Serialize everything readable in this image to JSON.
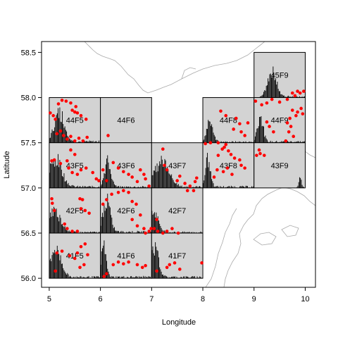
{
  "chart_data": {
    "type": "scatter",
    "title": "",
    "xlabel": "Longitude",
    "ylabel": "Latitude",
    "xlim": [
      4.85,
      10.2
    ],
    "ylim": [
      55.9,
      58.62
    ],
    "x_ticks": [
      5,
      6,
      7,
      8,
      9,
      10
    ],
    "y_ticks": [
      56.0,
      56.5,
      57.0,
      57.5,
      58.0,
      58.5
    ],
    "x_tick_labels": [
      "5",
      "6",
      "7",
      "8",
      "9",
      "10"
    ],
    "y_tick_labels": [
      "56.0",
      "56.5",
      "57.0",
      "57.5",
      "58.0",
      "58.5"
    ],
    "grid": false,
    "colors": {
      "cell_fill": "#d3d3d3",
      "points": "#ff0000",
      "histogram": "#000000",
      "coast": "#a9a9a9"
    },
    "cells": [
      {
        "label": "45F9",
        "x0": 9,
        "x1": 10,
        "y0": 58.0,
        "y1": 58.5,
        "peak": 0.35,
        "spread": 0.35,
        "hmax": 0.36
      },
      {
        "label": "44F5",
        "x0": 5,
        "x1": 6,
        "y0": 57.5,
        "y1": 58.0,
        "peak": 0.2,
        "spread": 0.4,
        "hmax": 0.42
      },
      {
        "label": "44F6",
        "x0": 6,
        "x1": 7,
        "y0": 57.5,
        "y1": 58.0,
        "peak": null,
        "spread": 0.2,
        "hmax": 0
      },
      {
        "label": "44F8",
        "x0": 8,
        "x1": 9,
        "y0": 57.5,
        "y1": 58.0,
        "peak": 0.14,
        "spread": 0.25,
        "hmax": 0.3
      },
      {
        "label": "44F9",
        "x0": 9,
        "x1": 10,
        "y0": 57.5,
        "y1": 58.0,
        "peak": 0.12,
        "spread": 0.22,
        "hmax": 0.38
      },
      {
        "label": "43F5",
        "x0": 5,
        "x1": 6,
        "y0": 57.0,
        "y1": 57.5,
        "peak": 0.12,
        "spread": 0.5,
        "hmax": 0.4
      },
      {
        "label": "43F6",
        "x0": 6,
        "x1": 7,
        "y0": 57.0,
        "y1": 57.5,
        "peak": 0.14,
        "spread": 0.25,
        "hmax": 0.36
      },
      {
        "label": "43F7",
        "x0": 7,
        "x1": 8,
        "y0": 57.0,
        "y1": 57.5,
        "peak": 0.2,
        "spread": 0.55,
        "hmax": 0.38
      },
      {
        "label": "43F8",
        "x0": 8,
        "x1": 9,
        "y0": 57.0,
        "y1": 57.5,
        "peak": 0.1,
        "spread": 0.2,
        "hmax": 0.4
      },
      {
        "label": "43F9",
        "x0": 9,
        "x1": 10,
        "y0": 57.0,
        "y1": 57.5,
        "peak": 0.9,
        "spread": 0.1,
        "hmax": 0.16
      },
      {
        "label": "42F5",
        "x0": 5,
        "x1": 6,
        "y0": 56.5,
        "y1": 57.0,
        "peak": 0.1,
        "spread": 0.5,
        "hmax": 0.3
      },
      {
        "label": "42F6",
        "x0": 6,
        "x1": 7,
        "y0": 56.5,
        "y1": 57.0,
        "peak": 0.12,
        "spread": 0.3,
        "hmax": 0.44
      },
      {
        "label": "42F7",
        "x0": 7,
        "x1": 8,
        "y0": 56.5,
        "y1": 57.0,
        "peak": 0.04,
        "spread": 0.35,
        "hmax": 0.3
      },
      {
        "label": "41F5",
        "x0": 5,
        "x1": 6,
        "y0": 56.0,
        "y1": 56.5,
        "peak": 0.12,
        "spread": 0.45,
        "hmax": 0.4
      },
      {
        "label": "41F6",
        "x0": 6,
        "x1": 7,
        "y0": 56.0,
        "y1": 56.5,
        "peak": 0.06,
        "spread": 0.2,
        "hmax": 0.44
      },
      {
        "label": "41F7",
        "x0": 7,
        "x1": 8,
        "y0": 56.0,
        "y1": 56.5,
        "peak": 0.06,
        "spread": 0.3,
        "hmax": 0.42
      }
    ],
    "points": [
      [
        5.02,
        57.83
      ],
      [
        5.08,
        57.8
      ],
      [
        5.12,
        57.76
      ],
      [
        5.18,
        57.93
      ],
      [
        5.25,
        57.97
      ],
      [
        5.33,
        57.96
      ],
      [
        5.42,
        57.94
      ],
      [
        5.45,
        57.86
      ],
      [
        5.5,
        57.84
      ],
      [
        5.55,
        57.83
      ],
      [
        5.62,
        57.8
      ],
      [
        5.72,
        57.76
      ],
      [
        5.52,
        57.9
      ],
      [
        5.15,
        57.6
      ],
      [
        5.22,
        57.63
      ],
      [
        5.28,
        57.58
      ],
      [
        5.35,
        57.54
      ],
      [
        5.42,
        57.57
      ],
      [
        5.5,
        57.52
      ],
      [
        5.58,
        57.55
      ],
      [
        5.66,
        57.52
      ],
      [
        5.74,
        57.56
      ],
      [
        6.15,
        57.58
      ],
      [
        9.03,
        57.96
      ],
      [
        9.15,
        57.92
      ],
      [
        9.25,
        57.94
      ],
      [
        9.35,
        57.98
      ],
      [
        9.5,
        57.95
      ],
      [
        9.65,
        57.98
      ],
      [
        9.8,
        58.02
      ],
      [
        9.9,
        58.05
      ],
      [
        9.97,
        58.07
      ],
      [
        9.85,
        58.07
      ],
      [
        9.75,
        58.05
      ],
      [
        9.92,
        57.88
      ],
      [
        9.85,
        57.84
      ],
      [
        9.95,
        57.82
      ],
      [
        9.75,
        57.86
      ],
      [
        9.82,
        57.8
      ],
      [
        9.7,
        57.77
      ],
      [
        9.65,
        57.72
      ],
      [
        9.72,
        57.68
      ],
      [
        9.68,
        57.62
      ],
      [
        9.77,
        57.57
      ],
      [
        9.62,
        57.52
      ],
      [
        9.25,
        57.73
      ],
      [
        9.3,
        57.68
      ],
      [
        9.38,
        57.62
      ],
      [
        8.35,
        57.85
      ],
      [
        8.45,
        57.8
      ],
      [
        8.65,
        57.77
      ],
      [
        8.72,
        57.71
      ],
      [
        8.6,
        57.65
      ],
      [
        8.75,
        57.62
      ],
      [
        8.82,
        57.58
      ],
      [
        8.88,
        57.72
      ],
      [
        8.3,
        57.5
      ],
      [
        8.15,
        57.5
      ],
      [
        8.05,
        57.49
      ],
      [
        8.42,
        57.45
      ],
      [
        8.5,
        57.41
      ],
      [
        8.3,
        57.36
      ],
      [
        8.55,
        57.37
      ],
      [
        8.62,
        57.33
      ],
      [
        8.72,
        57.31
      ],
      [
        8.75,
        57.25
      ],
      [
        8.82,
        57.22
      ],
      [
        8.28,
        57.2
      ],
      [
        8.4,
        57.18
      ],
      [
        8.48,
        57.22
      ],
      [
        8.22,
        57.12
      ],
      [
        8.57,
        57.15
      ],
      [
        8.45,
        57.48
      ],
      [
        8.38,
        57.43
      ],
      [
        9.05,
        57.36
      ],
      [
        9.12,
        57.38
      ],
      [
        9.2,
        57.36
      ],
      [
        9.1,
        57.42
      ],
      [
        5.05,
        57.3
      ],
      [
        5.1,
        57.31
      ],
      [
        5.22,
        57.27
      ],
      [
        5.35,
        57.3
      ],
      [
        5.42,
        57.42
      ],
      [
        5.5,
        57.37
      ],
      [
        5.38,
        57.22
      ],
      [
        5.45,
        57.17
      ],
      [
        5.55,
        57.15
      ],
      [
        5.62,
        57.2
      ],
      [
        5.72,
        57.22
      ],
      [
        5.85,
        57.17
      ],
      [
        5.92,
        57.1
      ],
      [
        5.97,
        57.08
      ],
      [
        6.05,
        57.2
      ],
      [
        6.25,
        57.28
      ],
      [
        6.35,
        57.22
      ],
      [
        6.45,
        57.18
      ],
      [
        6.55,
        57.15
      ],
      [
        6.62,
        57.12
      ],
      [
        6.12,
        57.08
      ],
      [
        6.78,
        57.2
      ],
      [
        6.85,
        57.15
      ],
      [
        6.88,
        57.1
      ],
      [
        6.72,
        57.07
      ],
      [
        6.95,
        57.02
      ],
      [
        7.22,
        57.43
      ],
      [
        7.25,
        57.25
      ],
      [
        7.3,
        57.2
      ],
      [
        7.5,
        57.08
      ],
      [
        7.55,
        57.13
      ],
      [
        7.65,
        57.05
      ],
      [
        7.7,
        56.97
      ],
      [
        7.75,
        57.02
      ],
      [
        7.82,
        56.97
      ],
      [
        7.85,
        57.07
      ],
      [
        7.88,
        57.11
      ],
      [
        5.05,
        56.88
      ],
      [
        5.06,
        56.83
      ],
      [
        5.1,
        56.75
      ],
      [
        5.3,
        56.6
      ],
      [
        5.35,
        56.55
      ],
      [
        5.45,
        56.52
      ],
      [
        5.55,
        56.52
      ],
      [
        5.6,
        56.88
      ],
      [
        5.65,
        56.87
      ],
      [
        5.62,
        56.77
      ],
      [
        5.7,
        56.75
      ],
      [
        5.78,
        56.72
      ],
      [
        6.05,
        56.82
      ],
      [
        6.12,
        56.87
      ],
      [
        6.22,
        56.93
      ],
      [
        6.35,
        56.95
      ],
      [
        6.45,
        56.97
      ],
      [
        6.55,
        56.95
      ],
      [
        6.62,
        56.85
      ],
      [
        6.7,
        56.82
      ],
      [
        6.78,
        56.7
      ],
      [
        6.62,
        56.65
      ],
      [
        6.72,
        56.58
      ],
      [
        6.85,
        56.55
      ],
      [
        6.88,
        56.5
      ],
      [
        6.95,
        56.52
      ],
      [
        6.99,
        56.55
      ],
      [
        7.05,
        56.55
      ],
      [
        7.12,
        56.52
      ],
      [
        7.22,
        56.5
      ],
      [
        7.3,
        56.52
      ],
      [
        7.4,
        56.55
      ],
      [
        7.52,
        56.5
      ],
      [
        7.1,
        56.65
      ],
      [
        5.15,
        56.28
      ],
      [
        5.25,
        56.3
      ],
      [
        5.4,
        56.25
      ],
      [
        5.5,
        56.22
      ],
      [
        5.55,
        56.28
      ],
      [
        5.62,
        56.35
      ],
      [
        5.7,
        56.38
      ],
      [
        5.75,
        56.26
      ],
      [
        5.68,
        56.15
      ],
      [
        5.6,
        56.12
      ],
      [
        5.12,
        56.08
      ],
      [
        6.07,
        56.02
      ],
      [
        6.12,
        56.05
      ],
      [
        6.25,
        56.15
      ],
      [
        6.35,
        56.18
      ],
      [
        6.45,
        56.16
      ],
      [
        6.55,
        56.18
      ],
      [
        6.72,
        56.15
      ],
      [
        6.82,
        56.12
      ],
      [
        6.88,
        56.14
      ],
      [
        7.1,
        56.08
      ],
      [
        7.3,
        56.12
      ],
      [
        7.35,
        56.15
      ],
      [
        7.45,
        56.17
      ],
      [
        7.55,
        56.1
      ],
      [
        7.98,
        56.17
      ]
    ]
  }
}
